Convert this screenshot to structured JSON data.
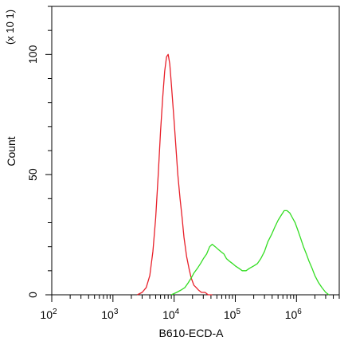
{
  "chart_data": {
    "type": "line",
    "title": "",
    "xlabel": "B610-ECD-A",
    "ylabel": "Count",
    "yscale_label": "(x 10 1)",
    "x_scale": "log",
    "xlim": [
      100,
      5000000
    ],
    "ylim": [
      0,
      120
    ],
    "x_tick_labels": [
      {
        "base": "10",
        "exp": "2",
        "value": 100
      },
      {
        "base": "10",
        "exp": "3",
        "value": 1000
      },
      {
        "base": "10",
        "exp": "4",
        "value": 10000
      },
      {
        "base": "10",
        "exp": "5",
        "value": 100000
      },
      {
        "base": "10",
        "exp": "6",
        "value": 1000000
      }
    ],
    "y_ticks": [
      0,
      50,
      100
    ],
    "grid": false,
    "legend": "none",
    "series": [
      {
        "color": "#e8202a",
        "x": [
          2500,
          3000,
          3500,
          4000,
          4500,
          5000,
          5500,
          6000,
          6500,
          7000,
          7500,
          8000,
          8500,
          9000,
          9500,
          10000,
          10800,
          11500,
          12500,
          13500,
          14500,
          16000,
          17500,
          19000,
          21000,
          23000,
          25000,
          28000,
          32000,
          36000,
          42000
        ],
        "y": [
          0,
          1,
          3,
          8,
          18,
          32,
          50,
          68,
          82,
          93,
          99,
          100,
          96,
          88,
          80,
          72,
          60,
          50,
          40,
          32,
          24,
          16,
          11,
          7,
          4,
          3,
          2,
          1,
          1,
          0,
          0
        ]
      },
      {
        "color": "#33dd22",
        "x": [
          9000,
          11000,
          13000,
          15000,
          17000,
          19000,
          21000,
          24000,
          27000,
          30000,
          34000,
          38000,
          42000,
          47000,
          52000,
          58000,
          65000,
          72000,
          80000,
          90000,
          100000,
          115000,
          130000,
          150000,
          170000,
          200000,
          230000,
          260000,
          300000,
          340000,
          390000,
          440000,
          500000,
          560000,
          630000,
          700000,
          780000,
          860000,
          950000,
          1050000,
          1150000,
          1300000,
          1450000,
          1600000,
          1800000,
          2000000,
          2300000,
          2600000,
          3000000,
          3400000
        ],
        "y": [
          0,
          1,
          2,
          3,
          5,
          7,
          9,
          11,
          13,
          15,
          17,
          20,
          21,
          20,
          19,
          18,
          17,
          15,
          14,
          13,
          12,
          11,
          10,
          10,
          11,
          12,
          13,
          15,
          18,
          22,
          25,
          28,
          31,
          33,
          35,
          35,
          34,
          32,
          30,
          27,
          24,
          20,
          17,
          14,
          11,
          8,
          5,
          3,
          1,
          0
        ]
      }
    ]
  }
}
